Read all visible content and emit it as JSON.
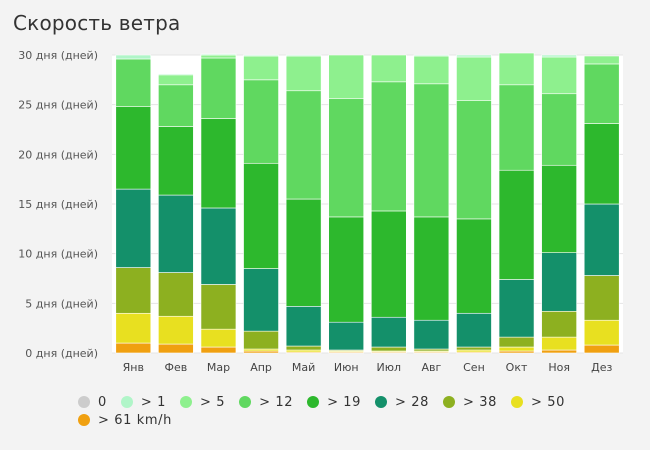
{
  "title": "Скорость ветра",
  "chart_data": {
    "type": "bar",
    "stacked": true,
    "title": "Скорость ветра",
    "categories": [
      "Янв",
      "Фев",
      "Мар",
      "Апр",
      "Май",
      "Июн",
      "Июл",
      "Авг",
      "Сен",
      "Окт",
      "Ноя",
      "Дез"
    ],
    "y_ticks": [
      0,
      5,
      10,
      15,
      20,
      25,
      30
    ],
    "y_unit": "дня (дней)",
    "ylim": [
      0,
      30
    ],
    "grid": true,
    "legend_position": "bottom",
    "series": [
      {
        "name": ">61 km/h",
        "color": "#f0a010",
        "values": [
          1.0,
          0.9,
          0.6,
          0.2,
          0.1,
          0.1,
          0.1,
          0.1,
          0.1,
          0.2,
          0.3,
          0.8
        ]
      },
      {
        "name": ">50",
        "color": "#e8e020",
        "values": [
          3.0,
          2.8,
          1.8,
          0.2,
          0.2,
          0.1,
          0.1,
          0.1,
          0.2,
          0.4,
          1.3,
          2.5
        ]
      },
      {
        "name": ">38",
        "color": "#8db020",
        "values": [
          4.6,
          4.4,
          4.5,
          1.8,
          0.4,
          0.1,
          0.4,
          0.2,
          0.3,
          1.0,
          2.6,
          4.5
        ]
      },
      {
        "name": ">28",
        "color": "#14906a",
        "values": [
          7.9,
          7.8,
          7.7,
          6.3,
          4.0,
          2.8,
          3.0,
          2.9,
          3.4,
          5.8,
          5.9,
          7.2
        ]
      },
      {
        "name": ">19",
        "color": "#2db82d",
        "values": [
          8.3,
          6.9,
          9.0,
          10.6,
          10.8,
          10.6,
          10.7,
          10.4,
          9.5,
          11.0,
          8.8,
          8.1
        ]
      },
      {
        "name": ">12",
        "color": "#60d860",
        "values": [
          4.8,
          4.2,
          6.1,
          8.4,
          10.9,
          11.9,
          13.0,
          13.4,
          11.9,
          8.6,
          7.2,
          6.0
        ]
      },
      {
        "name": ">5",
        "color": "#8ef08e",
        "values": [
          0.0,
          1.0,
          0.3,
          2.4,
          3.5,
          4.4,
          2.7,
          2.8,
          4.4,
          3.2,
          3.7,
          0.8
        ]
      },
      {
        "name": ">1",
        "color": "#b0f5c8",
        "values": [
          0.4,
          0.1,
          0.1,
          0.1,
          0.1,
          0.0,
          0.0,
          0.1,
          0.2,
          0.0,
          0.2,
          0.0
        ]
      },
      {
        "name": "0",
        "color": "#d0d0d0",
        "values": [
          0.0,
          0.0,
          0.0,
          0.0,
          0.0,
          0.0,
          0.0,
          0.0,
          0.0,
          0.0,
          0.0,
          0.0
        ]
      }
    ]
  },
  "legend": [
    {
      "label": "0",
      "color": "#cccccc"
    },
    {
      "label": "> 1",
      "color": "#b0f5c8"
    },
    {
      "label": "> 5",
      "color": "#8ef08e"
    },
    {
      "label": "> 12",
      "color": "#60d860"
    },
    {
      "label": "> 19",
      "color": "#2db82d"
    },
    {
      "label": "> 28",
      "color": "#14906a"
    },
    {
      "label": "> 38",
      "color": "#8db020"
    },
    {
      "label": "> 50",
      "color": "#e8e020"
    },
    {
      "label": "> 61 km/h",
      "color": "#f0a010"
    }
  ]
}
